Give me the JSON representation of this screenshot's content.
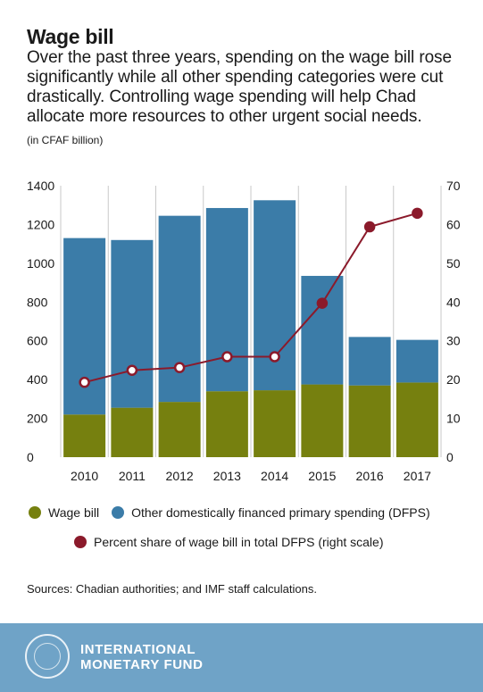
{
  "title": "Wage bill",
  "subtitle": "Over the past three years, spending on the wage bill rose significantly while all other spending categories were cut drastically. Controlling wage spending will help Chad allocate more resources to other urgent social needs.",
  "unit": "(in CFAF billion)",
  "source": "Sources: Chadian authorities; and IMF staff calculations.",
  "footer": {
    "org_line1": "INTERNATIONAL",
    "org_line2": "MONETARY FUND"
  },
  "colors": {
    "wage": "#76800f",
    "dfps": "#3b7ca8",
    "share": "#8b1a2b",
    "footer": "#6fa3c7"
  },
  "chart_data": {
    "type": "bar",
    "stacked": true,
    "categories": [
      "2010",
      "2011",
      "2012",
      "2013",
      "2014",
      "2015",
      "2016",
      "2017"
    ],
    "series": [
      {
        "name": "Wage bill",
        "type": "bar",
        "axis": "left",
        "values": [
          220,
          255,
          285,
          340,
          345,
          375,
          370,
          385
        ]
      },
      {
        "name": "Other domestically financed primary spending (DFPS)",
        "type": "bar",
        "axis": "left",
        "values": [
          910,
          865,
          960,
          945,
          980,
          560,
          250,
          220
        ]
      },
      {
        "name": "Percent share of wage bill in total DFPS (right scale)",
        "type": "line",
        "axis": "right",
        "values": [
          19.3,
          22.4,
          23.1,
          25.9,
          25.9,
          39.7,
          59.4,
          62.9
        ]
      }
    ],
    "ylim": [
      0,
      1400
    ],
    "yticks": [
      0,
      200,
      400,
      600,
      800,
      1000,
      1200,
      1400
    ],
    "y2lim": [
      0,
      70
    ],
    "y2ticks": [
      0,
      10,
      20,
      30,
      40,
      50,
      60,
      70
    ],
    "grid": "vertical",
    "legend": "bottom"
  }
}
